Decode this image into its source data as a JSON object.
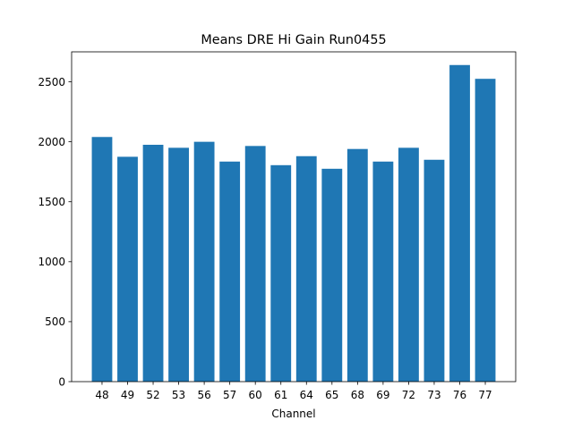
{
  "chart_data": {
    "type": "bar",
    "title": "Means DRE Hi Gain Run0455",
    "xlabel": "Channel",
    "ylabel": "",
    "categories": [
      "48",
      "49",
      "52",
      "53",
      "56",
      "57",
      "60",
      "61",
      "64",
      "65",
      "68",
      "69",
      "72",
      "73",
      "76",
      "77"
    ],
    "values": [
      2040,
      1875,
      1975,
      1950,
      2000,
      1835,
      1965,
      1805,
      1880,
      1775,
      1940,
      1835,
      1950,
      1850,
      2640,
      2525
    ],
    "ylim": [
      0,
      2750
    ],
    "yticks": [
      0,
      500,
      1000,
      1500,
      2000,
      2500
    ],
    "grid": false,
    "bar_color": "#1f77b4"
  }
}
